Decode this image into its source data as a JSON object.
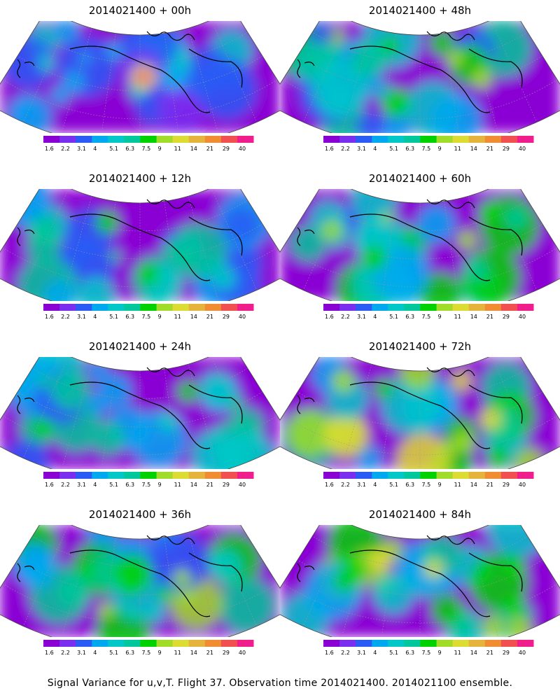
{
  "panels": [
    {
      "title": "2014021400 + 00h",
      "lead": "00h",
      "intensity": 0.15,
      "hotspot": "high"
    },
    {
      "title": "2014021400 + 48h",
      "lead": "48h",
      "intensity": 0.45,
      "hotspot": "medium"
    },
    {
      "title": "2014021400 + 12h",
      "lead": "12h",
      "intensity": 0.25,
      "hotspot": "medium"
    },
    {
      "title": "2014021400 + 60h",
      "lead": "60h",
      "intensity": 0.55,
      "hotspot": "medium"
    },
    {
      "title": "2014021400 + 24h",
      "lead": "24h",
      "intensity": 0.35,
      "hotspot": "medium"
    },
    {
      "title": "2014021400 + 72h",
      "lead": "72h",
      "intensity": 0.6,
      "hotspot": "medium"
    },
    {
      "title": "2014021400 + 36h",
      "lead": "36h",
      "intensity": 0.4,
      "hotspot": "medium"
    },
    {
      "title": "2014021400 + 84h",
      "lead": "84h",
      "intensity": 0.65,
      "hotspot": "medium"
    }
  ],
  "colorbar": {
    "labels": [
      "1.6",
      "2.2",
      "3.1",
      "4",
      "5.1",
      "6.3",
      "7.5",
      "9",
      "11",
      "14",
      "21",
      "29",
      "40"
    ],
    "colors": [
      "#8a00d4",
      "#7a2ef0",
      "#2a5cf5",
      "#00a8f0",
      "#00c8c8",
      "#00c89a",
      "#00d200",
      "#a0dc28",
      "#dcdc32",
      "#e6b43c",
      "#f08c32",
      "#f05050",
      "#f01e8c"
    ]
  },
  "footer": "Signal Variance for u,v,T. Flight 37. Observation time 2014021400. 2014021100 ensemble."
}
